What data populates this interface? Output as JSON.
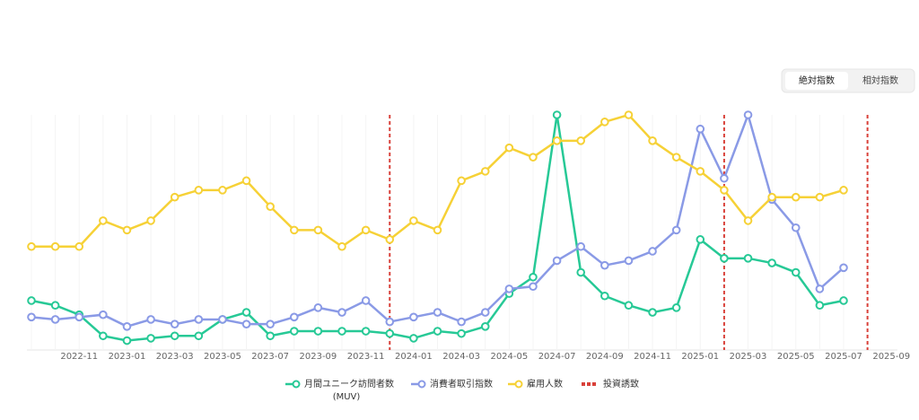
{
  "chart_data": {
    "type": "line",
    "toggle": [
      "絶対指数",
      "相対指数"
    ],
    "x": [
      "2022-09",
      "2022-10",
      "2022-11",
      "2022-12",
      "2023-01",
      "2023-02",
      "2023-03",
      "2023-04",
      "2023-05",
      "2023-06",
      "2023-07",
      "2023-08",
      "2023-09",
      "2023-10",
      "2023-11",
      "2023-12",
      "2024-01",
      "2024-02",
      "2024-03",
      "2024-04",
      "2024-05",
      "2024-06",
      "2024-07",
      "2024-08",
      "2024-09",
      "2024-10",
      "2024-11",
      "2024-12",
      "2025-01",
      "2025-02",
      "2025-03",
      "2025-04",
      "2025-05",
      "2025-06",
      "2025-07"
    ],
    "xticks": [
      "2022-11",
      "2023-01",
      "2023-03",
      "2023-05",
      "2023-07",
      "2023-09",
      "2023-11",
      "2024-01",
      "2024-03",
      "2024-05",
      "2024-07",
      "2024-09",
      "2024-11",
      "2025-01",
      "2025-03",
      "2025-05",
      "2025-07",
      "2025-09"
    ],
    "ylim": [
      0,
      100
    ],
    "series": [
      {
        "name": "月間ユニーク訪問者数 (MUV)",
        "color": "#27c996",
        "values": [
          21,
          19,
          15,
          6,
          4,
          5,
          6,
          6,
          13,
          16,
          6,
          8,
          8,
          8,
          8,
          7,
          5,
          8,
          7,
          10,
          24,
          31,
          100,
          33,
          23,
          19,
          16,
          18,
          47,
          39,
          39,
          37,
          33,
          19,
          21
        ]
      },
      {
        "name": "消費者取引指数",
        "color": "#8a9ae6",
        "values": [
          14,
          13,
          14,
          15,
          10,
          13,
          11,
          13,
          13,
          11,
          11,
          14,
          18,
          16,
          21,
          12,
          14,
          16,
          12,
          16,
          26,
          27,
          38,
          44,
          36,
          38,
          42,
          51,
          94,
          73,
          100,
          64,
          52,
          26,
          35
        ]
      },
      {
        "name": "雇用人数",
        "color": "#f6d136",
        "values": [
          44,
          44,
          44,
          55,
          51,
          55,
          65,
          68,
          68,
          72,
          61,
          51,
          51,
          44,
          51,
          47,
          55,
          51,
          72,
          76,
          86,
          82,
          89,
          89,
          97,
          100,
          89,
          82,
          76,
          68,
          55,
          65,
          65,
          65,
          68
        ]
      }
    ],
    "events": {
      "name": "投資誘致",
      "color": "#d9413a",
      "x": [
        "2023-12",
        "2025-02",
        "2025-08"
      ]
    }
  }
}
